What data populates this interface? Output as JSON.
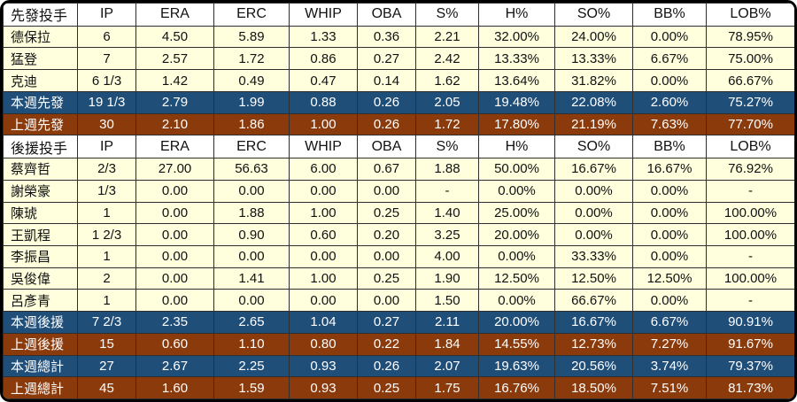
{
  "colors": {
    "row_light": "#FFFFDE",
    "header_bg": "#FFFFFF",
    "week_row_bg": "#1F4E79",
    "lastweek_row_bg": "#8A3A0B",
    "summary_text": "#FFFFFF",
    "grid_line": "#2F2F2F",
    "text": "#111111"
  },
  "chart_data": {
    "type": "table",
    "title": "Pitching statistics table (starters and relievers, weekly summary)",
    "column_keys": [
      "pitcher",
      "ip",
      "era",
      "erc",
      "whip",
      "oba",
      "s_pct",
      "h_pct",
      "so_pct",
      "bb_pct",
      "lob_pct"
    ],
    "rows": [
      {
        "type": "header",
        "cells": [
          "先發投手",
          "IP",
          "ERA",
          "ERC",
          "WHIP",
          "OBA",
          "S%",
          "H%",
          "SO%",
          "BB%",
          "LOB%"
        ]
      },
      {
        "type": "player",
        "cells": [
          "德保拉",
          "6",
          "4.50",
          "5.89",
          "1.33",
          "0.36",
          "2.21",
          "32.00%",
          "24.00%",
          "0.00%",
          "78.95%"
        ]
      },
      {
        "type": "player",
        "cells": [
          "猛登",
          "7",
          "2.57",
          "1.72",
          "0.86",
          "0.27",
          "2.42",
          "13.33%",
          "13.33%",
          "6.67%",
          "75.00%"
        ]
      },
      {
        "type": "player",
        "cells": [
          "克迪",
          "6 1/3",
          "1.42",
          "0.49",
          "0.47",
          "0.14",
          "1.62",
          "13.64%",
          "31.82%",
          "0.00%",
          "66.67%"
        ]
      },
      {
        "type": "summary-week",
        "cells": [
          "本週先發",
          "19 1/3",
          "2.79",
          "1.99",
          "0.88",
          "0.26",
          "2.05",
          "19.48%",
          "22.08%",
          "2.60%",
          "75.27%"
        ]
      },
      {
        "type": "summary-last",
        "cells": [
          "上週先發",
          "30",
          "2.10",
          "1.86",
          "1.00",
          "0.26",
          "1.72",
          "17.80%",
          "21.19%",
          "7.63%",
          "77.70%"
        ]
      },
      {
        "type": "header",
        "cells": [
          "後援投手",
          "IP",
          "ERA",
          "ERC",
          "WHIP",
          "OBA",
          "S%",
          "H%",
          "SO%",
          "BB%",
          "LOB%"
        ]
      },
      {
        "type": "player",
        "cells": [
          "蔡齊哲",
          "2/3",
          "27.00",
          "56.63",
          "6.00",
          "0.67",
          "1.88",
          "50.00%",
          "16.67%",
          "16.67%",
          "76.92%"
        ]
      },
      {
        "type": "player",
        "cells": [
          "謝榮豪",
          "1/3",
          "0.00",
          "0.00",
          "0.00",
          "0.00",
          "-",
          "0.00%",
          "0.00%",
          "0.00%",
          "-"
        ]
      },
      {
        "type": "player",
        "cells": [
          "陳琥",
          "1",
          "0.00",
          "1.88",
          "1.00",
          "0.25",
          "1.40",
          "25.00%",
          "0.00%",
          "0.00%",
          "100.00%"
        ]
      },
      {
        "type": "player",
        "cells": [
          "王凱程",
          "1 2/3",
          "0.00",
          "0.90",
          "0.60",
          "0.20",
          "3.25",
          "20.00%",
          "0.00%",
          "0.00%",
          "100.00%"
        ]
      },
      {
        "type": "player",
        "cells": [
          "李振昌",
          "1",
          "0.00",
          "0.00",
          "0.00",
          "0.00",
          "4.00",
          "0.00%",
          "33.33%",
          "0.00%",
          "-"
        ]
      },
      {
        "type": "player",
        "cells": [
          "吳俊偉",
          "2",
          "0.00",
          "1.41",
          "1.00",
          "0.25",
          "1.90",
          "12.50%",
          "12.50%",
          "12.50%",
          "100.00%"
        ]
      },
      {
        "type": "player",
        "cells": [
          "呂彥青",
          "1",
          "0.00",
          "0.00",
          "0.00",
          "0.00",
          "1.50",
          "0.00%",
          "66.67%",
          "0.00%",
          "-"
        ]
      },
      {
        "type": "summary-week",
        "cells": [
          "本週後援",
          "7 2/3",
          "2.35",
          "2.65",
          "1.04",
          "0.27",
          "2.11",
          "20.00%",
          "16.67%",
          "6.67%",
          "90.91%"
        ]
      },
      {
        "type": "summary-last",
        "cells": [
          "上週後援",
          "15",
          "0.60",
          "1.10",
          "0.80",
          "0.22",
          "1.84",
          "14.55%",
          "12.73%",
          "7.27%",
          "91.67%"
        ]
      },
      {
        "type": "summary-week",
        "cells": [
          "本週總計",
          "27",
          "2.67",
          "2.25",
          "0.93",
          "0.26",
          "2.07",
          "19.63%",
          "20.56%",
          "3.74%",
          "79.37%"
        ]
      },
      {
        "type": "summary-last",
        "cells": [
          "上週總計",
          "45",
          "1.60",
          "1.59",
          "0.93",
          "0.25",
          "1.75",
          "16.76%",
          "18.50%",
          "7.51%",
          "81.73%"
        ]
      }
    ]
  }
}
